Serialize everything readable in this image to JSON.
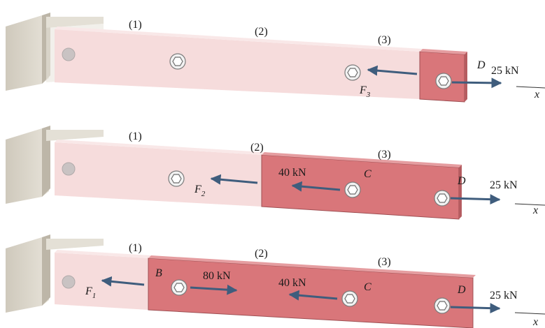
{
  "panels": [
    {
      "segment_labels": [
        "(1)",
        "(2)",
        "(3)"
      ],
      "forces": [
        {
          "label": "D",
          "text": "25 kN"
        },
        {
          "label": "F",
          "subscript": "3"
        }
      ],
      "axis_label": "x"
    },
    {
      "segment_labels": [
        "(1)",
        "(2)",
        "(3)"
      ],
      "forces": [
        {
          "label": "F",
          "subscript": "2"
        },
        {
          "label": "C",
          "text": "40 kN"
        },
        {
          "label": "D",
          "text": "25 kN"
        }
      ],
      "axis_label": "x"
    },
    {
      "segment_labels": [
        "(1)",
        "(2)",
        "(3)"
      ],
      "forces": [
        {
          "label": "F",
          "subscript": "1"
        },
        {
          "label": "B",
          "text": "80 kN"
        },
        {
          "label": "C",
          "text": "40 kN"
        },
        {
          "label": "D",
          "text": "25 kN"
        }
      ],
      "axis_label": "x"
    }
  ],
  "colors": {
    "bar_light": "#f6dcdc",
    "bar_highlight": "#d9767a",
    "arrow": "#3f5d7d",
    "support": "#ddd8cc"
  },
  "icons": [
    "hex-bolt-icon",
    "wall-support-icon",
    "force-arrow-icon"
  ]
}
